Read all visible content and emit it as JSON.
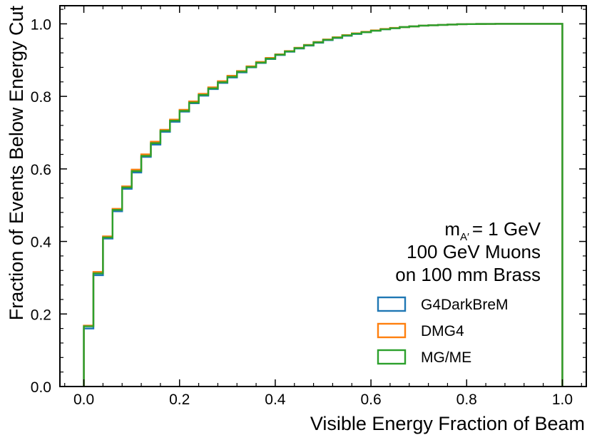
{
  "chart_data": {
    "type": "step",
    "title": "",
    "xlabel": "Visible Energy Fraction of Beam",
    "ylabel": "Fraction of Events Below Energy Cut",
    "xlim": [
      -0.05,
      1.05
    ],
    "ylim": [
      0.0,
      1.05
    ],
    "xticks": [
      "0.0",
      "0.2",
      "0.4",
      "0.6",
      "0.8",
      "1.0"
    ],
    "xtick_values": [
      0.0,
      0.2,
      0.4,
      0.6,
      0.8,
      1.0
    ],
    "yticks": [
      "0.0",
      "0.2",
      "0.4",
      "0.6",
      "0.8",
      "1.0"
    ],
    "ytick_values": [
      0.0,
      0.2,
      0.4,
      0.6,
      0.8,
      1.0
    ],
    "bin_edges": [
      0.0,
      0.02,
      0.04,
      0.06,
      0.08,
      0.1,
      0.12,
      0.14,
      0.16,
      0.18,
      0.2,
      0.22,
      0.24,
      0.26,
      0.28,
      0.3,
      0.32,
      0.34,
      0.36,
      0.38,
      0.4,
      0.42,
      0.44,
      0.46,
      0.48,
      0.5,
      0.52,
      0.54,
      0.56,
      0.58,
      0.6,
      0.62,
      0.64,
      0.66,
      0.68,
      0.7,
      0.72,
      0.74,
      0.76,
      0.78,
      0.8,
      0.82,
      0.84,
      0.86,
      0.88,
      0.9,
      0.92,
      0.94,
      0.96,
      0.98,
      1.0
    ],
    "series": [
      {
        "name": "G4DarkBreM",
        "color": "#1f77b4",
        "values": [
          0.16,
          0.307,
          0.408,
          0.483,
          0.545,
          0.59,
          0.633,
          0.667,
          0.702,
          0.73,
          0.758,
          0.781,
          0.802,
          0.82,
          0.837,
          0.852,
          0.866,
          0.88,
          0.892,
          0.903,
          0.914,
          0.923,
          0.932,
          0.94,
          0.948,
          0.955,
          0.961,
          0.967,
          0.972,
          0.977,
          0.981,
          0.985,
          0.988,
          0.991,
          0.993,
          0.995,
          0.996,
          0.997,
          0.998,
          0.999,
          0.9993,
          0.9996,
          0.9998,
          0.9999,
          1.0,
          1.0,
          1.0,
          1.0,
          1.0,
          1.0
        ]
      },
      {
        "name": "DMG4",
        "color": "#ff7f0e",
        "values": [
          0.168,
          0.316,
          0.414,
          0.49,
          0.552,
          0.598,
          0.64,
          0.675,
          0.708,
          0.736,
          0.763,
          0.786,
          0.807,
          0.825,
          0.842,
          0.857,
          0.87,
          0.883,
          0.895,
          0.906,
          0.916,
          0.925,
          0.934,
          0.942,
          0.95,
          0.957,
          0.963,
          0.969,
          0.974,
          0.978,
          0.982,
          0.986,
          0.989,
          0.991,
          0.993,
          0.995,
          0.996,
          0.997,
          0.998,
          0.999,
          0.9993,
          0.9996,
          0.9998,
          0.9999,
          1.0,
          1.0,
          1.0,
          1.0,
          1.0,
          1.0
        ]
      },
      {
        "name": "MG/ME",
        "color": "#2ca02c",
        "values": [
          0.166,
          0.312,
          0.411,
          0.487,
          0.549,
          0.594,
          0.636,
          0.671,
          0.705,
          0.733,
          0.76,
          0.783,
          0.804,
          0.822,
          0.839,
          0.854,
          0.868,
          0.881,
          0.893,
          0.904,
          0.915,
          0.924,
          0.933,
          0.941,
          0.949,
          0.956,
          0.962,
          0.968,
          0.973,
          0.977,
          0.981,
          0.985,
          0.988,
          0.991,
          0.993,
          0.995,
          0.996,
          0.997,
          0.998,
          0.999,
          0.9993,
          0.9996,
          0.9998,
          0.9999,
          1.0,
          1.0,
          1.0,
          1.0,
          1.0,
          1.0
        ]
      }
    ],
    "annotations": {
      "mass_prefix": "m",
      "mass_subscript": "A′",
      "mass_value": "= 1 GeV",
      "line2": "100 GeV Muons",
      "line3": "on 100 mm Brass"
    },
    "legend_position": "lower-right",
    "grid": false
  }
}
